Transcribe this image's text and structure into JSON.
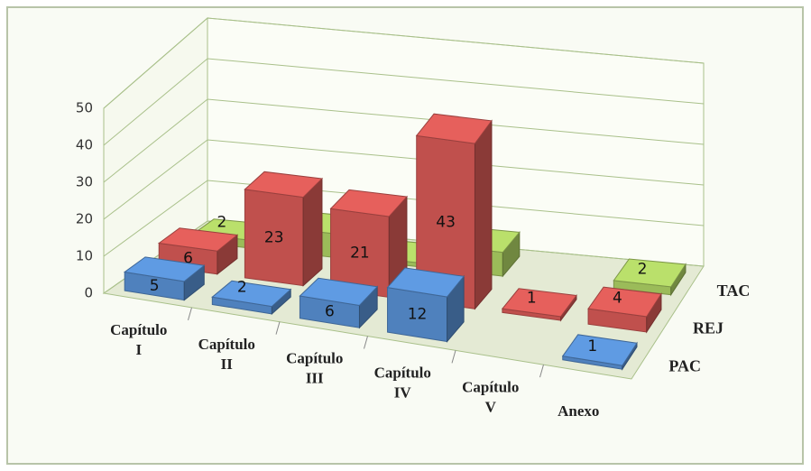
{
  "chart_data": {
    "type": "bar3d",
    "categories": [
      "Capítulo I",
      "Capítulo II",
      "Capítulo III",
      "Capítulo IV",
      "Capítulo V",
      "Anexo"
    ],
    "series": [
      {
        "name": "PAC",
        "color": "#4f81bd",
        "values": [
          5,
          2,
          6,
          12,
          null,
          1
        ]
      },
      {
        "name": "REJ",
        "color": "#c0504d",
        "values": [
          6,
          23,
          21,
          43,
          1,
          4
        ]
      },
      {
        "name": "TAC",
        "color": "#9bbb59",
        "values": [
          2,
          6,
          1,
          6,
          null,
          2
        ]
      }
    ],
    "ylim": [
      0,
      50
    ],
    "yticks": [
      0,
      10,
      20,
      30,
      40,
      50
    ],
    "grid": true
  }
}
